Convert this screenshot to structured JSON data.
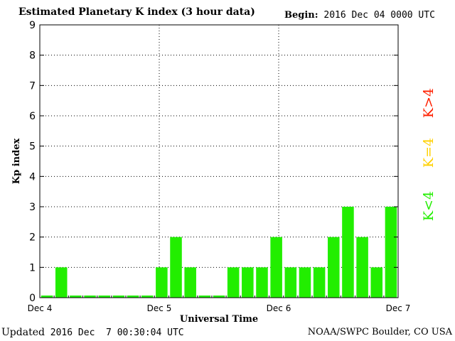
{
  "header": {
    "title": "Estimated Planetary K index (3 hour data)",
    "begin_label": "Begin:",
    "begin_value": "2016 Dec 04 0000 UTC"
  },
  "footer": {
    "updated_label": "Updated",
    "updated_value": "2016 Dec  7 00:30:04 UTC",
    "credit": "NOAA/SWPC Boulder, CO USA"
  },
  "legend": [
    {
      "label": "K>4",
      "color": "#ff2000"
    },
    {
      "label": "K=4",
      "color": "#ffd000"
    },
    {
      "label": "K<4",
      "color": "#22ee00"
    }
  ],
  "chart_data": {
    "type": "bar",
    "title": "Estimated Planetary K index (3 hour data)",
    "xlabel": "Universal Time",
    "ylabel": "Kp index",
    "ylim": [
      0,
      9
    ],
    "yticks": [
      "0",
      "1",
      "2",
      "3",
      "4",
      "5",
      "6",
      "7",
      "8",
      "9"
    ],
    "xtick_labels": [
      "Dec 4",
      "Dec 5",
      "Dec 6",
      "Dec 7"
    ],
    "grid": "dotted",
    "bar_color": "#22ee00",
    "x_unit": "3-hour intervals from 2016 Dec 04 0000 UTC",
    "values": [
      0,
      1,
      0,
      0,
      0,
      0,
      0,
      0,
      1,
      2,
      1,
      0,
      0,
      1,
      1,
      1,
      2,
      1,
      1,
      1,
      2,
      3,
      2,
      1,
      3
    ]
  }
}
